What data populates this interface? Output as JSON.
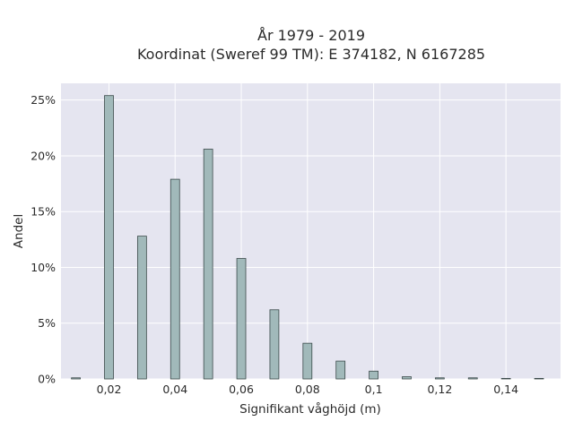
{
  "chart_data": {
    "type": "bar",
    "title_line1": "År 1979 - 2019",
    "title_line2": "Koordinat (Sweref 99 TM): E 374182, N 6167285",
    "xlabel": "Signifikant våghöjd (m)",
    "ylabel": "Andel",
    "xlim": [
      0.0055,
      0.1565
    ],
    "ylim": [
      0,
      26.5
    ],
    "x_ticks": [
      {
        "value": 0.02,
        "label": "0,02"
      },
      {
        "value": 0.04,
        "label": "0,04"
      },
      {
        "value": 0.06,
        "label": "0,06"
      },
      {
        "value": 0.08,
        "label": "0,08"
      },
      {
        "value": 0.1,
        "label": "0,1"
      },
      {
        "value": 0.12,
        "label": "0,12"
      },
      {
        "value": 0.14,
        "label": "0,14"
      }
    ],
    "y_ticks": [
      {
        "value": 0,
        "label": "0%"
      },
      {
        "value": 5,
        "label": "5%"
      },
      {
        "value": 10,
        "label": "10%"
      },
      {
        "value": 15,
        "label": "15%"
      },
      {
        "value": 20,
        "label": "20%"
      },
      {
        "value": 25,
        "label": "25%"
      }
    ],
    "bar_width": 0.0027,
    "x": [
      0.01,
      0.02,
      0.03,
      0.04,
      0.05,
      0.06,
      0.07,
      0.08,
      0.09,
      0.1,
      0.11,
      0.12,
      0.13,
      0.14,
      0.15
    ],
    "values": [
      0.1,
      25.4,
      12.8,
      17.9,
      20.6,
      10.8,
      6.2,
      3.2,
      1.6,
      0.7,
      0.2,
      0.1,
      0.1,
      0.05,
      0.05
    ],
    "grid": true,
    "legend": "none"
  }
}
